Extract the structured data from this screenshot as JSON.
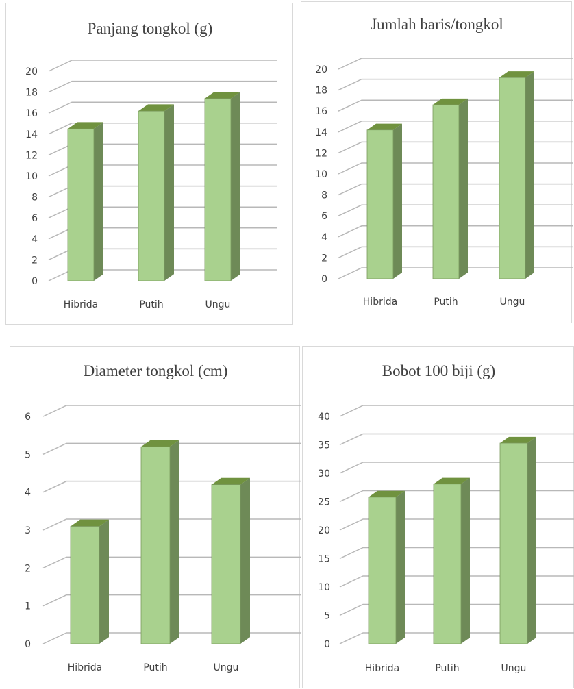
{
  "chart_data": [
    {
      "type": "bar",
      "title": "Panjang tongkol (g)",
      "categories": [
        "Hibrida",
        "Putih",
        "Ungu"
      ],
      "values": [
        14.5,
        16.2,
        17.4
      ],
      "ylim": [
        0,
        20
      ],
      "yticks": [
        "0",
        "2",
        "4",
        "6",
        "8",
        "10",
        "12",
        "14",
        "16",
        "18",
        "20"
      ],
      "grid": true,
      "xlabel": "",
      "ylabel": ""
    },
    {
      "type": "bar",
      "title": "Jumlah baris/tongkol",
      "categories": [
        "Hibrida",
        "Putih",
        "Ungu"
      ],
      "values": [
        14.2,
        16.6,
        19.2
      ],
      "ylim": [
        0,
        20
      ],
      "yticks": [
        "0",
        "2",
        "4",
        "6",
        "8",
        "10",
        "12",
        "14",
        "16",
        "18",
        "20"
      ],
      "grid": true,
      "xlabel": "",
      "ylabel": ""
    },
    {
      "type": "bar",
      "title": "Diameter tongkol (cm)",
      "categories": [
        "Hibrida",
        "Putih",
        "Ungu"
      ],
      "values": [
        3.1,
        5.2,
        4.2
      ],
      "ylim": [
        0,
        6
      ],
      "yticks": [
        "0",
        "1",
        "2",
        "3",
        "4",
        "5",
        "6"
      ],
      "grid": true,
      "xlabel": "",
      "ylabel": ""
    },
    {
      "type": "bar",
      "title": "Bobot 100 biji (g)",
      "categories": [
        "Hibrida",
        "Putih",
        "Ungu"
      ],
      "values": [
        25.8,
        28.1,
        35.3
      ],
      "ylim": [
        0,
        40
      ],
      "yticks": [
        "0",
        "5",
        "10",
        "15",
        "20",
        "25",
        "30",
        "35",
        "40"
      ],
      "grid": true,
      "xlabel": "",
      "ylabel": ""
    }
  ],
  "colors": {
    "bar_front": "#a9d18e",
    "bar_top": "#70923f",
    "bar_side": "#6e8a57",
    "bar_edge": "#7a9a5e",
    "gridline": "#b8b8b8",
    "panel_border": "#d9d9d9",
    "text": "#404040"
  }
}
